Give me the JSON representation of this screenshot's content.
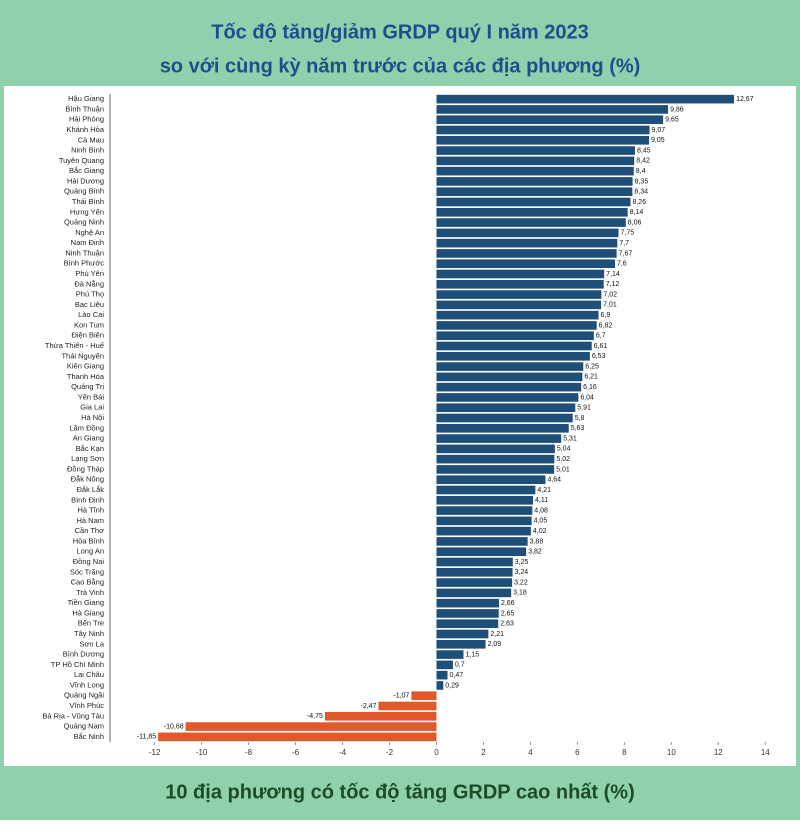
{
  "chart_data": {
    "type": "barh",
    "title": [
      "Tốc độ tăng/giảm GRDP quý I năm 2023",
      "so với cùng kỳ năm trước của các địa phương (%)"
    ],
    "footer": "10 địa phương có tốc độ tăng GRDP cao nhất (%)",
    "categories": [
      "Hậu Giang",
      "Bình Thuận",
      "Hải Phòng",
      "Khánh Hòa",
      "Cà Mau",
      "Ninh Bình",
      "Tuyên Quang",
      "Bắc Giang",
      "Hải Dương",
      "Quảng Bình",
      "Thái Bình",
      "Hưng Yên",
      "Quảng Ninh",
      "Nghệ An",
      "Nam Định",
      "Ninh Thuận",
      "Bình Phước",
      "Phú Yên",
      "Đà Nẵng",
      "Phú Thọ",
      "Bạc Liêu",
      "Lào Cai",
      "Kon Tum",
      "Điện Biên",
      "Thừa Thiên - Huế",
      "Thái Nguyên",
      "Kiên Giang",
      "Thanh Hóa",
      "Quảng Trị",
      "Yên Bái",
      "Gia Lai",
      "Hà Nội",
      "Lâm Đồng",
      "An Giang",
      "Bắc Kạn",
      "Lạng Sơn",
      "Đồng Tháp",
      "Đắk Nông",
      "Đắk Lắk",
      "Bình Định",
      "Hà Tĩnh",
      "Hà Nam",
      "Cần Thơ",
      "Hòa Bình",
      "Long An",
      "Đồng Nai",
      "Sóc Trăng",
      "Cao Bằng",
      "Trà Vinh",
      "Tiền Giang",
      "Hà Giang",
      "Bến Tre",
      "Tây Ninh",
      "Sơn La",
      "Bình Dương",
      "TP Hồ Chí Minh",
      "Lai Châu",
      "Vĩnh Long",
      "Quảng Ngãi",
      "Vĩnh Phúc",
      "Bà Rịa - Vũng Tàu",
      "Quảng Nam",
      "Bắc Ninh"
    ],
    "values": [
      12.67,
      9.86,
      9.65,
      9.07,
      9.05,
      8.45,
      8.42,
      8.4,
      8.35,
      8.34,
      8.26,
      8.14,
      8.06,
      7.75,
      7.7,
      7.67,
      7.6,
      7.14,
      7.12,
      7.02,
      7.01,
      6.9,
      6.82,
      6.7,
      6.61,
      6.53,
      6.25,
      6.21,
      6.16,
      6.04,
      5.91,
      5.8,
      5.63,
      5.31,
      5.04,
      5.02,
      5.01,
      4.64,
      4.21,
      4.11,
      4.08,
      4.05,
      4.02,
      3.88,
      3.82,
      3.25,
      3.24,
      3.22,
      3.18,
      2.66,
      2.65,
      2.63,
      2.21,
      2.09,
      1.15,
      0.7,
      0.47,
      0.29,
      -1.07,
      -2.47,
      -4.75,
      -10.68,
      -11.85
    ],
    "value_labels": [
      "12,67",
      "9,86",
      "9,65",
      "9,07",
      "9,05",
      "8,45",
      "8,42",
      "8,4",
      "8,35",
      "8,34",
      "8,26",
      "8,14",
      "8,06",
      "7,75",
      "7,7",
      "7,67",
      "7,6",
      "7,14",
      "7,12",
      "7,02",
      "7,01",
      "6,9",
      "6,82",
      "6,7",
      "6,61",
      "6,53",
      "6,25",
      "6,21",
      "6,16",
      "6,04",
      "5,91",
      "5,8",
      "5,63",
      "5,31",
      "5,04",
      "5,02",
      "5,01",
      "4,64",
      "4,21",
      "4,11",
      "4,08",
      "4,05",
      "4,02",
      "3,88",
      "3,82",
      "3,25",
      "3,24",
      "3,22",
      "3,18",
      "2,66",
      "2,65",
      "2,63",
      "2,21",
      "2,09",
      "1,15",
      "0,7",
      "0,47",
      "0,29",
      "-1,07",
      "-2,47",
      "-4,75",
      "-10,68",
      "-11,85"
    ],
    "color": "#1f4e79",
    "negative_color": "#e0592a",
    "xlim": [
      -13.9,
      14.2
    ],
    "xticks": [
      -12,
      -10,
      -8,
      -6,
      -4,
      -2,
      0,
      2,
      4,
      6,
      8,
      10,
      12,
      14
    ]
  }
}
